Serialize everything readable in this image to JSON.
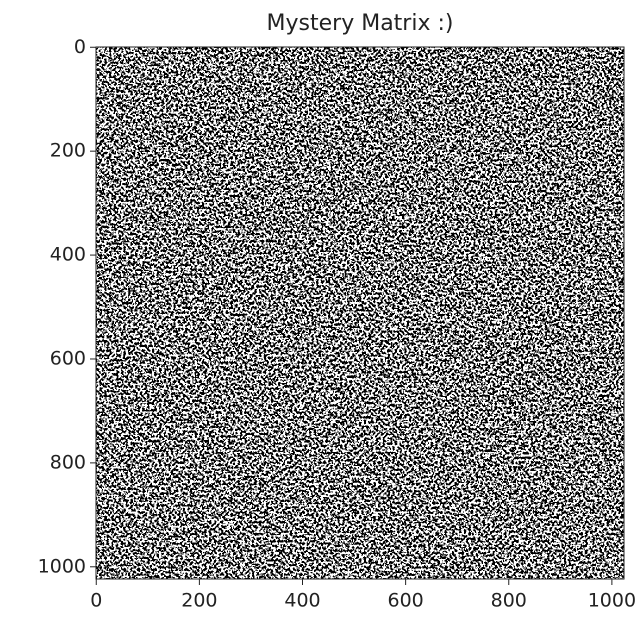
{
  "chart_data": {
    "type": "image",
    "title": "Mystery Matrix :)",
    "xlim": [
      -0.5,
      1023.5
    ],
    "ylim": [
      1023.5,
      -0.5
    ],
    "xticks": [
      0,
      200,
      400,
      600,
      800,
      1000
    ],
    "yticks": [
      0,
      200,
      400,
      600,
      800,
      1000
    ],
    "colormap": [
      "#000000",
      "#ffffff"
    ]
  }
}
